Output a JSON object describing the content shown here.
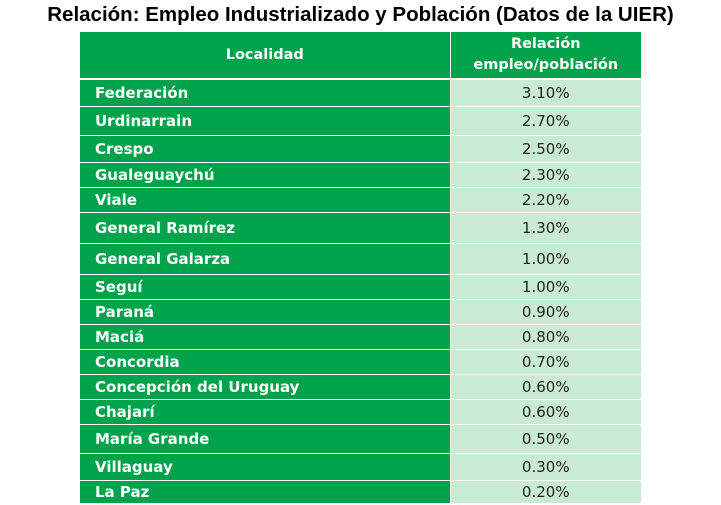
{
  "title": "Relación: Empleo Industrializado y Población (Datos de la UIER)",
  "table": {
    "headers": {
      "localidad": "Localidad",
      "relacion_line1": "Relación",
      "relacion_line2": "empleo/población"
    },
    "rows": [
      {
        "localidad": "Federación",
        "relacion": "3.10%"
      },
      {
        "localidad": "Urdinarrain",
        "relacion": "2.70%"
      },
      {
        "localidad": "Crespo",
        "relacion": "2.50%"
      },
      {
        "localidad": "Gualeguaychú",
        "relacion": "2.30%"
      },
      {
        "localidad": "Viale",
        "relacion": "2.20%"
      },
      {
        "localidad": "General Ramírez",
        "relacion": "1.30%"
      },
      {
        "localidad": "General Galarza",
        "relacion": "1.00%"
      },
      {
        "localidad": "Seguí",
        "relacion": "1.00%"
      },
      {
        "localidad": "Paraná",
        "relacion": "0.90%"
      },
      {
        "localidad": "Maciá",
        "relacion": "0.80%"
      },
      {
        "localidad": "Concordia",
        "relacion": "0.70%"
      },
      {
        "localidad": "Concepción del Uruguay",
        "relacion": "0.60%"
      },
      {
        "localidad": "Chajarí",
        "relacion": "0.60%"
      },
      {
        "localidad": "María Grande",
        "relacion": "0.50%"
      },
      {
        "localidad": "Villaguay",
        "relacion": "0.30%"
      },
      {
        "localidad": "La Paz",
        "relacion": "0.20%"
      }
    ]
  },
  "colors": {
    "header_green": "#00a34b",
    "value_cell_green": "#c9ebd3"
  }
}
